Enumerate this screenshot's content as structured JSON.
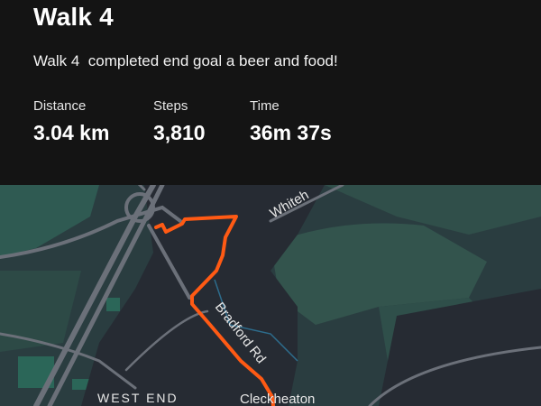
{
  "activity": {
    "title": "Walk 4",
    "description": "Walk 4  completed end goal a beer and food!",
    "stats": [
      {
        "label": "Distance",
        "value": "3.04 km"
      },
      {
        "label": "Steps",
        "value": "3,810"
      },
      {
        "label": "Time",
        "value": "36m 37s"
      }
    ]
  },
  "map": {
    "labels": {
      "road_top": "Whiteh",
      "road_mid": "Bradford Rd",
      "town": "Cleckheaton",
      "district": "WEST END"
    },
    "route_color": "#ff5a14"
  }
}
